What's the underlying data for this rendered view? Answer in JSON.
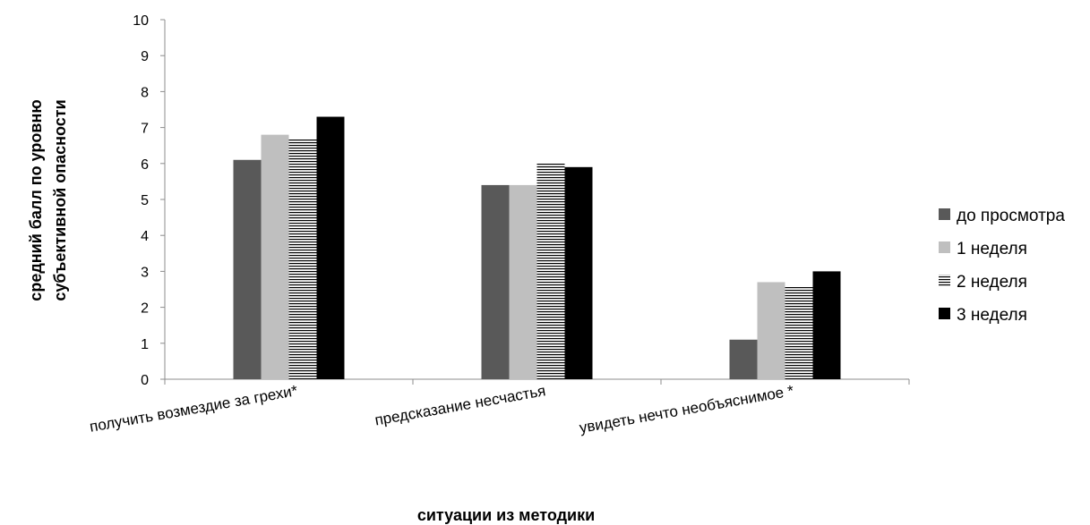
{
  "chart_data": {
    "type": "bar",
    "categories": [
      "получить возмездие за грехи*",
      "предсказание несчастья",
      "увидеть нечто необъяснимое  *"
    ],
    "series": [
      {
        "name": "до просмотра",
        "values": [
          6.1,
          5.4,
          1.1
        ],
        "color": "#595959",
        "pattern": "solid"
      },
      {
        "name": "1 неделя",
        "values": [
          6.8,
          5.4,
          2.7
        ],
        "color": "#bfbfbf",
        "pattern": "solid"
      },
      {
        "name": "2 неделя",
        "values": [
          6.7,
          6.0,
          2.6
        ],
        "color": "#000000",
        "pattern": "horizontal-stripes"
      },
      {
        "name": "3 неделя",
        "values": [
          7.3,
          5.9,
          3.0
        ],
        "color": "#000000",
        "pattern": "solid"
      }
    ],
    "title": "",
    "xlabel": "ситуации из методики",
    "ylabel_lines": [
      "средний балл по уровню",
      "субъективной опасности"
    ],
    "ylim": [
      0,
      10
    ],
    "yticks": [
      "0",
      "1",
      "2",
      "3",
      "4",
      "5",
      "6",
      "7",
      "8",
      "9",
      "10"
    ],
    "grid": false,
    "legend_position": "right"
  }
}
